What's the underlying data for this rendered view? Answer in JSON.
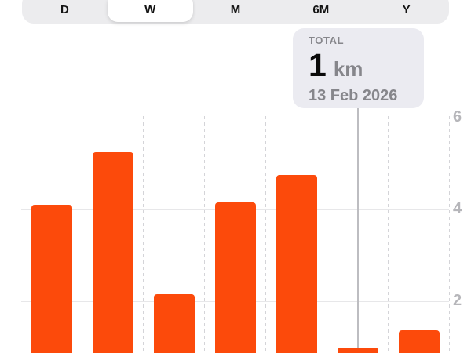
{
  "segmented_control": {
    "options": [
      "D",
      "W",
      "M",
      "6M",
      "Y"
    ],
    "selected_index": 1
  },
  "tooltip": {
    "label": "TOTAL",
    "value": "1",
    "unit": "km",
    "date": "13 Feb 2026"
  },
  "chart_data": {
    "type": "bar",
    "title": "",
    "xlabel": "",
    "ylabel": "km",
    "values": [
      4.1,
      5.25,
      2.15,
      4.15,
      4.75,
      1.0,
      1.37
    ],
    "selected_index": 5,
    "selected_total": "1 km",
    "selected_date": "13 Feb 2026",
    "yticks": [
      6,
      4,
      2
    ],
    "ylim": [
      0,
      6
    ],
    "grid": true,
    "legend": false
  },
  "colors": {
    "bar": "#fc4a0b",
    "selection_line": "#bdbdc1",
    "tooltip_bg": "#ebebf1",
    "segmented_bg": "#ececee",
    "muted_text": "#86868b",
    "axis_text": "#b6b6ba"
  }
}
